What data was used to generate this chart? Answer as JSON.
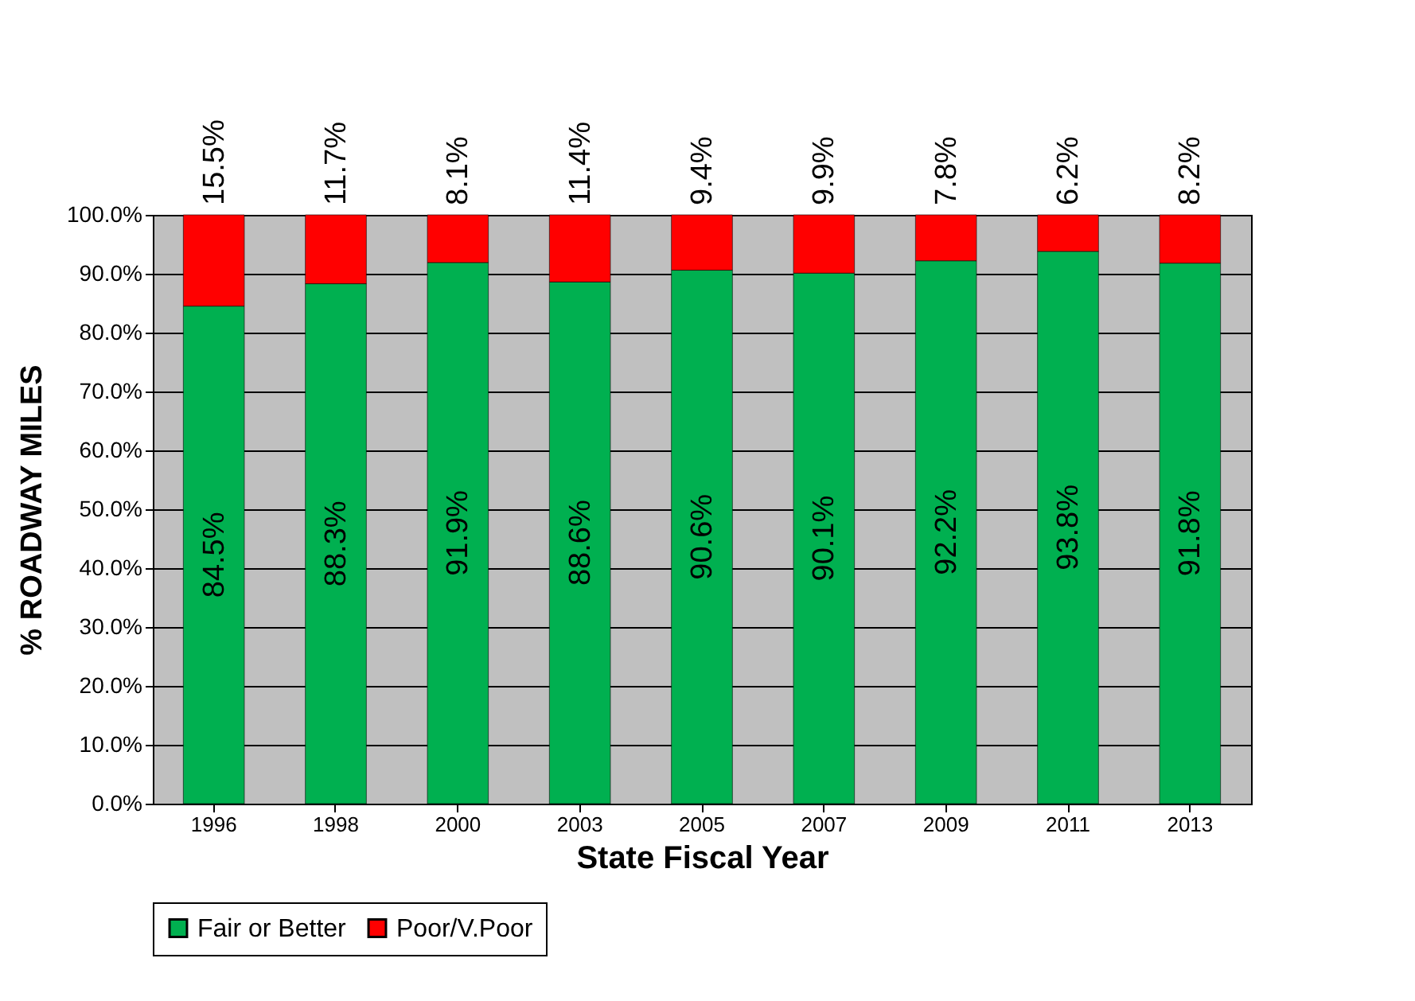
{
  "chart_data": {
    "type": "bar",
    "stacked": true,
    "xlabel": "State Fiscal Year",
    "ylabel": "% ROADWAY MILES",
    "categories": [
      "1996",
      "1998",
      "2000",
      "2003",
      "2005",
      "2007",
      "2009",
      "2011",
      "2013"
    ],
    "series": [
      {
        "name": "Fair or Better",
        "color": "#00b050",
        "values": [
          84.5,
          88.3,
          91.9,
          88.6,
          90.6,
          90.1,
          92.2,
          93.8,
          91.8
        ],
        "value_labels": [
          "84.5%",
          "88.3%",
          "91.9%",
          "88.6%",
          "90.6%",
          "90.1%",
          "92.2%",
          "93.8%",
          "91.8%"
        ]
      },
      {
        "name": "Poor/V.Poor",
        "color": "#ff0000",
        "values": [
          15.5,
          11.7,
          8.1,
          11.4,
          9.4,
          9.9,
          7.8,
          6.2,
          8.2
        ],
        "value_labels": [
          "15.5%",
          "11.7%",
          "8.1%",
          "11.4%",
          "9.4%",
          "9.9%",
          "7.8%",
          "6.2%",
          "8.2%"
        ]
      }
    ],
    "ylim": [
      0,
      100
    ],
    "yticks": [
      {
        "value": 0,
        "label": "0.0%"
      },
      {
        "value": 10,
        "label": "10.0%"
      },
      {
        "value": 20,
        "label": "20.0%"
      },
      {
        "value": 30,
        "label": "30.0%"
      },
      {
        "value": 40,
        "label": "40.0%"
      },
      {
        "value": 50,
        "label": "50.0%"
      },
      {
        "value": 60,
        "label": "60.0%"
      },
      {
        "value": 70,
        "label": "70.0%"
      },
      {
        "value": 80,
        "label": "80.0%"
      },
      {
        "value": 90,
        "label": "90.0%"
      },
      {
        "value": 100,
        "label": "100.0%"
      }
    ],
    "grid": "y",
    "legend": "bottom"
  }
}
